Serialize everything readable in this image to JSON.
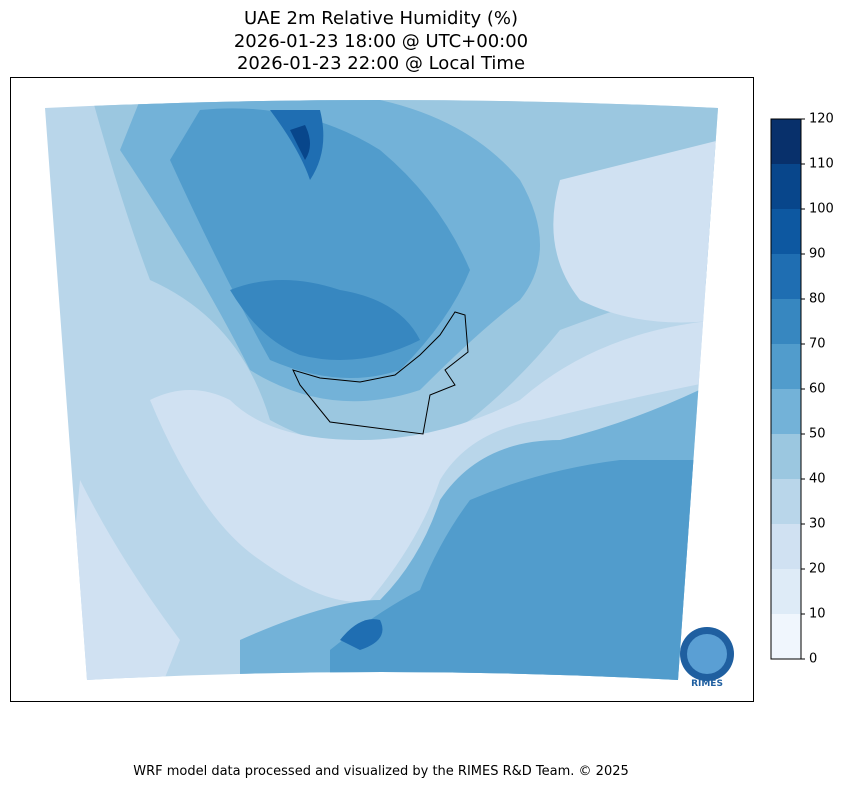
{
  "title": [
    "UAE 2m Relative Humidity (%)",
    "2026-01-23 18:00 @ UTC+00:00",
    "2026-01-23 22:00 @ Local Time"
  ],
  "colorbar": {
    "ticks": [
      0,
      10,
      20,
      30,
      40,
      50,
      60,
      70,
      80,
      90,
      100,
      110,
      120
    ],
    "colors": [
      "#f0f6fd",
      "#deebf7",
      "#d0e1f2",
      "#b9d6ea",
      "#9bc7e0",
      "#73b2d8",
      "#519ccc",
      "#3787c0",
      "#1f6eb2",
      "#0d58a1",
      "#08468b",
      "#08306b"
    ]
  },
  "logo": "RIMES",
  "footer": "WRF model data processed and visualized by the RIMES R&D Team. © 2025"
}
